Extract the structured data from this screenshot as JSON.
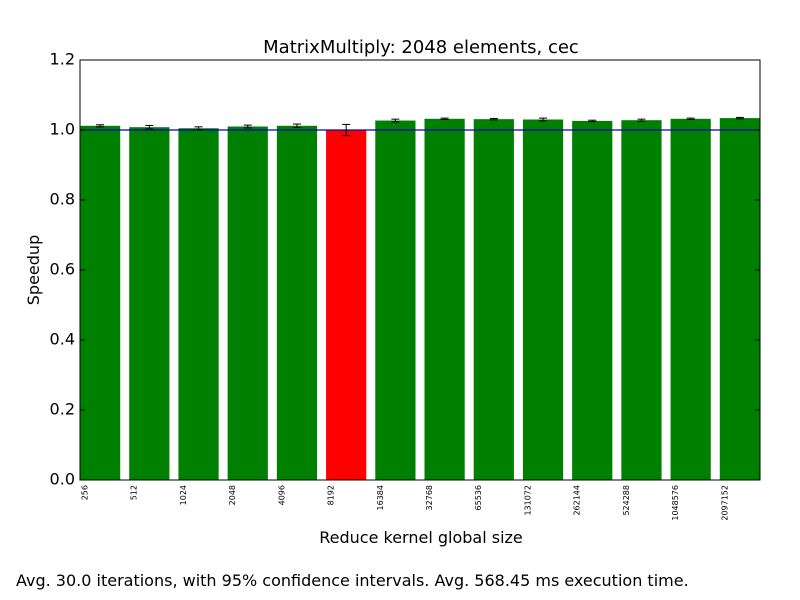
{
  "chart_data": {
    "type": "bar",
    "title": "MatrixMultiply: 2048 elements, cec",
    "xlabel": "Reduce kernel global size",
    "ylabel": "Speedup",
    "ylim": [
      0,
      1.2
    ],
    "yticks": [
      "0.0",
      "0.2",
      "0.4",
      "0.6",
      "0.8",
      "1.0",
      "1.2"
    ],
    "categories": [
      "256",
      "512",
      "1024",
      "2048",
      "4096",
      "8192",
      "16384",
      "32768",
      "65536",
      "131072",
      "262144",
      "524288",
      "1048576",
      "2097152"
    ],
    "values": [
      1.012,
      1.008,
      1.005,
      1.01,
      1.012,
      1.0,
      1.027,
      1.032,
      1.031,
      1.03,
      1.026,
      1.028,
      1.032,
      1.034
    ],
    "errors": [
      0.003,
      0.005,
      0.004,
      0.004,
      0.005,
      0.016,
      0.004,
      0.002,
      0.002,
      0.004,
      0.002,
      0.003,
      0.002,
      0.002
    ],
    "bar_colors": [
      "#008000",
      "#008000",
      "#008000",
      "#008000",
      "#008000",
      "#ff0000",
      "#008000",
      "#008000",
      "#008000",
      "#008000",
      "#008000",
      "#008000",
      "#008000",
      "#008000"
    ],
    "baseline": 1.0,
    "baseline_color": "#0000bf",
    "grid": false,
    "legend": "none"
  },
  "caption": "Avg. 30.0 iterations, with 95% confidence intervals. Avg. 568.45 ms execution time."
}
